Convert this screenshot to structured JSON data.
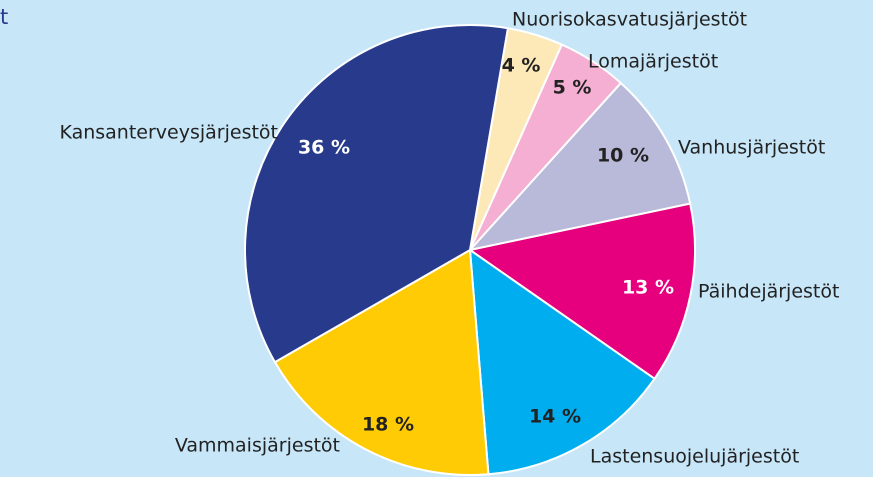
{
  "chart_data": {
    "type": "pie",
    "title": "t",
    "categories": [
      "Nuorisokasvatusjärjestöt",
      "Lomajärjestöt",
      "Vanhusjärjestöt",
      "Päihdejärjestöt",
      "Lastensuojelujärjestöt",
      "Vammaisjärjestöt",
      "Kansanterveysjärjestöt"
    ],
    "values": [
      4,
      5,
      10,
      13,
      14,
      18,
      36
    ],
    "value_labels": [
      "4 %",
      "5 %",
      "10 %",
      "13 %",
      "14 %",
      "18 %",
      "36  %"
    ],
    "colors": [
      "#fde9b8",
      "#f4afd2",
      "#b9b9d9",
      "#e6007e",
      "#00aeef",
      "#ffcb05",
      "#283a8c"
    ]
  }
}
